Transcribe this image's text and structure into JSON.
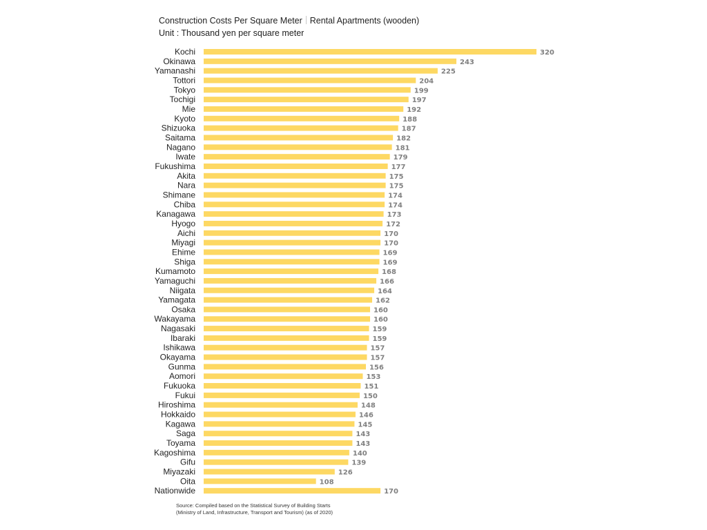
{
  "header": {
    "title": "Construction Costs Per Square Meter",
    "subtitle": "Rental Apartments (wooden)",
    "unit": "Unit : Thousand yen per square meter"
  },
  "footer": {
    "source_line1": "Source: Compiled based on the Statistical Survey of Building Starts",
    "source_line2": "(Ministry of Land, Infrastructure, Transport and Tourism) (as of 2020)"
  },
  "colors": {
    "bar": "#fdd863",
    "category_label": "#222222",
    "value_label": "#808080"
  },
  "chart_data": {
    "type": "bar",
    "orientation": "horizontal",
    "title": "Construction Costs Per Square Meter",
    "subtitle": "Rental Apartments (wooden)",
    "unit": "Thousand yen per square meter",
    "xlim": [
      0,
      320
    ],
    "grid": false,
    "legend": "none",
    "categories": [
      "Kochi",
      "Okinawa",
      "Yamanashi",
      "Tottori",
      "Tokyo",
      "Tochigi",
      "Mie",
      "Kyoto",
      "Shizuoka",
      "Saitama",
      "Nagano",
      "Iwate",
      "Fukushima",
      "Akita",
      "Nara",
      "Shimane",
      "Chiba",
      "Kanagawa",
      "Hyogo",
      "Aichi",
      "Miyagi",
      "Ehime",
      "Shiga",
      "Kumamoto",
      "Yamaguchi",
      "Niigata",
      "Yamagata",
      "Osaka",
      "Wakayama",
      "Nagasaki",
      "Ibaraki",
      "Ishikawa",
      "Okayama",
      "Gunma",
      "Aomori",
      "Fukuoka",
      "Fukui",
      "Hiroshima",
      "Hokkaido",
      "Kagawa",
      "Saga",
      "Toyama",
      "Kagoshima",
      "Gifu",
      "Miyazaki",
      "Oita",
      "Nationwide"
    ],
    "values": [
      320,
      243,
      225,
      204,
      199,
      197,
      192,
      188,
      187,
      182,
      181,
      179,
      177,
      175,
      175,
      174,
      174,
      173,
      172,
      170,
      170,
      169,
      169,
      168,
      166,
      164,
      162,
      160,
      160,
      159,
      159,
      157,
      157,
      156,
      153,
      151,
      150,
      148,
      146,
      145,
      143,
      143,
      140,
      139,
      126,
      108,
      170
    ]
  }
}
